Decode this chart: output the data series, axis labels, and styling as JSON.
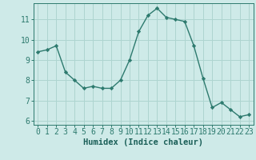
{
  "x": [
    0,
    1,
    2,
    3,
    4,
    5,
    6,
    7,
    8,
    9,
    10,
    11,
    12,
    13,
    14,
    15,
    16,
    17,
    18,
    19,
    20,
    21,
    22,
    23
  ],
  "y": [
    9.4,
    9.5,
    9.7,
    8.4,
    8.0,
    7.6,
    7.7,
    7.6,
    7.6,
    8.0,
    9.0,
    10.4,
    11.2,
    11.55,
    11.1,
    11.0,
    10.9,
    9.7,
    8.1,
    6.65,
    6.9,
    6.55,
    6.2,
    6.3
  ],
  "xlabel": "Humidex (Indice chaleur)",
  "xlim": [
    -0.5,
    23.5
  ],
  "ylim": [
    5.8,
    11.8
  ],
  "yticks": [
    6,
    7,
    8,
    9,
    10,
    11
  ],
  "xticks": [
    0,
    1,
    2,
    3,
    4,
    5,
    6,
    7,
    8,
    9,
    10,
    11,
    12,
    13,
    14,
    15,
    16,
    17,
    18,
    19,
    20,
    21,
    22,
    23
  ],
  "line_color": "#2d7a6e",
  "marker_color": "#2d7a6e",
  "bg_color": "#ceeae8",
  "grid_color": "#aed4d0",
  "axis_color": "#2d7a6e",
  "tick_label_color": "#2d7a6e",
  "xlabel_color": "#1a5f58",
  "xlabel_fontsize": 7.5,
  "tick_fontsize": 7.0
}
